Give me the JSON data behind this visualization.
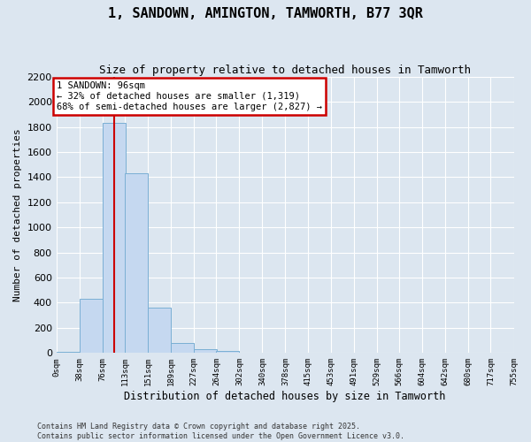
{
  "title": "1, SANDOWN, AMINGTON, TAMWORTH, B77 3QR",
  "subtitle": "Size of property relative to detached houses in Tamworth",
  "xlabel": "Distribution of detached houses by size in Tamworth",
  "ylabel": "Number of detached properties",
  "bar_color": "#c5d8f0",
  "bar_edge_color": "#7aafd4",
  "plot_bg_color": "#dce6f0",
  "fig_bg_color": "#dce6f0",
  "grid_color": "#ffffff",
  "bins": [
    0,
    38,
    76,
    113,
    151,
    189,
    227,
    264,
    302,
    340,
    378,
    415,
    453,
    491,
    529,
    566,
    604,
    642,
    680,
    717,
    755
  ],
  "bin_labels": [
    "0sqm",
    "38sqm",
    "76sqm",
    "113sqm",
    "151sqm",
    "189sqm",
    "227sqm",
    "264sqm",
    "302sqm",
    "340sqm",
    "378sqm",
    "415sqm",
    "453sqm",
    "491sqm",
    "529sqm",
    "566sqm",
    "604sqm",
    "642sqm",
    "680sqm",
    "717sqm",
    "755sqm"
  ],
  "values": [
    10,
    430,
    1830,
    1430,
    360,
    80,
    30,
    15,
    5,
    0,
    0,
    0,
    0,
    0,
    0,
    0,
    0,
    0,
    0,
    0
  ],
  "property_size": 96,
  "property_line_color": "#cc0000",
  "annotation_line1": "1 SANDOWN: 96sqm",
  "annotation_line2": "← 32% of detached houses are smaller (1,319)",
  "annotation_line3": "68% of semi-detached houses are larger (2,827) →",
  "annotation_box_color": "#cc0000",
  "ylim": [
    0,
    2200
  ],
  "yticks": [
    0,
    200,
    400,
    600,
    800,
    1000,
    1200,
    1400,
    1600,
    1800,
    2000,
    2200
  ],
  "footer_line1": "Contains HM Land Registry data © Crown copyright and database right 2025.",
  "footer_line2": "Contains public sector information licensed under the Open Government Licence v3.0."
}
